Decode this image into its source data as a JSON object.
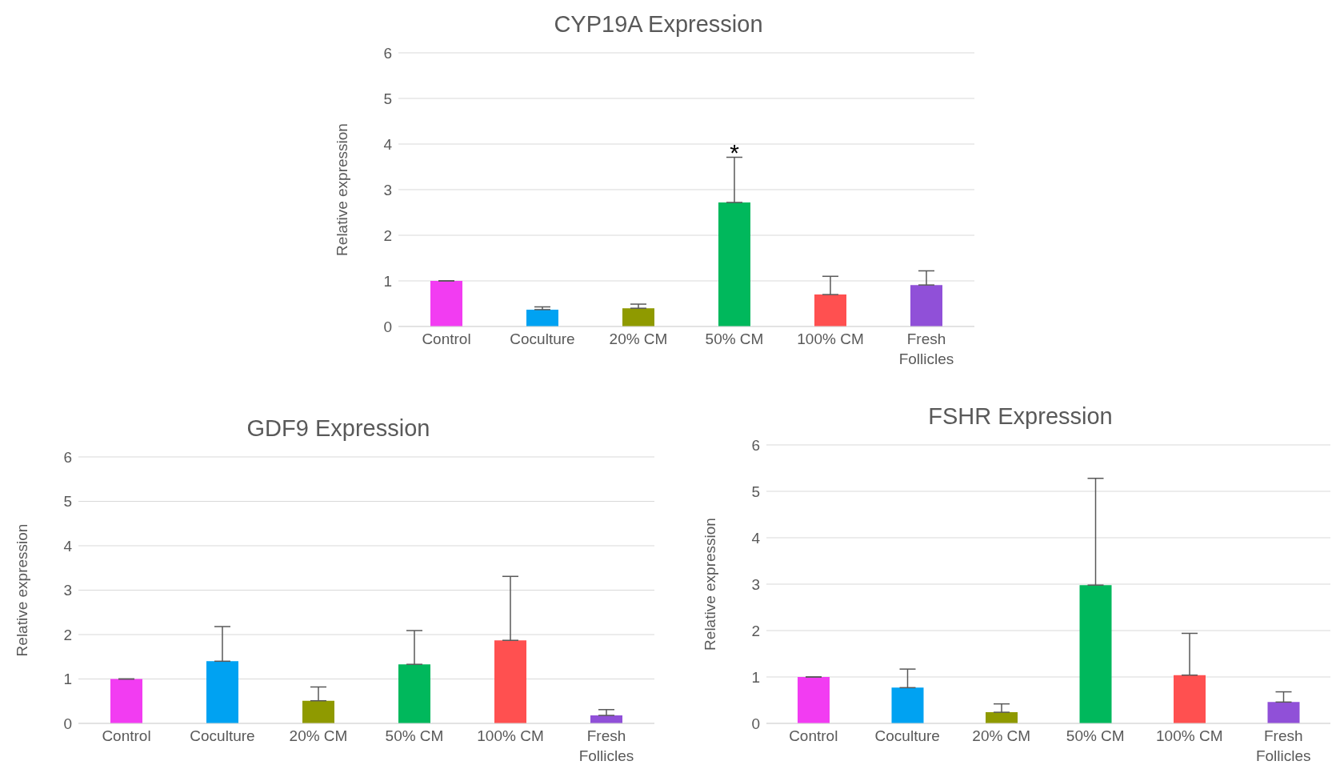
{
  "chart_data": [
    {
      "type": "bar",
      "title": "CYP19A Expression",
      "ylabel": "Relative expression",
      "categories": [
        "Control",
        "Coculture",
        "20% CM",
        "50% CM",
        "100% CM",
        "Fresh Follicles"
      ],
      "values": [
        1.0,
        0.37,
        0.4,
        2.72,
        0.7,
        0.91
      ],
      "colors": [
        "#f23cf2",
        "#00a2f2",
        "#8f9a00",
        "#00b85c",
        "#ff5050",
        "#9050d8"
      ],
      "errors": [
        [
          1.0,
          1.0
        ],
        [
          0.37,
          0.43
        ],
        [
          0.4,
          0.49
        ],
        [
          2.72,
          3.71
        ],
        [
          0.7,
          1.1
        ],
        [
          0.91,
          1.22
        ]
      ],
      "ylim": [
        0,
        6
      ],
      "yticks": [
        0,
        1,
        2,
        3,
        4,
        5,
        6
      ],
      "grid": "y",
      "legend": false,
      "annotations": [
        {
          "text": "*",
          "x": "50% CM",
          "y": 3.71
        }
      ]
    },
    {
      "type": "bar",
      "title": "GDF9 Expression",
      "ylabel": "Relative expression",
      "categories": [
        "Control",
        "Coculture",
        "20% CM",
        "50% CM",
        "100% CM",
        "Fresh Follicles"
      ],
      "values": [
        1.0,
        1.4,
        0.51,
        1.33,
        1.87,
        0.18
      ],
      "colors": [
        "#f23cf2",
        "#00a2f2",
        "#8f9a00",
        "#00b85c",
        "#ff5050",
        "#9050d8"
      ],
      "errors": [
        [
          1.0,
          1.0
        ],
        [
          1.4,
          2.18
        ],
        [
          0.51,
          0.82
        ],
        [
          1.33,
          2.09
        ],
        [
          1.87,
          3.31
        ],
        [
          0.18,
          0.31
        ]
      ],
      "ylim": [
        0,
        6
      ],
      "yticks": [
        0,
        1,
        2,
        3,
        4,
        5,
        6
      ],
      "grid": "y",
      "legend": false
    },
    {
      "type": "bar",
      "title": "FSHR Expression",
      "ylabel": "Relative expression",
      "categories": [
        "Control",
        "Coculture",
        "20% CM",
        "50% CM",
        "100% CM",
        "Fresh Follicles"
      ],
      "values": [
        1.0,
        0.77,
        0.24,
        2.98,
        1.04,
        0.46
      ],
      "colors": [
        "#f23cf2",
        "#00a2f2",
        "#8f9a00",
        "#00b85c",
        "#ff5050",
        "#9050d8"
      ],
      "errors": [
        [
          1.0,
          1.0
        ],
        [
          0.77,
          1.17
        ],
        [
          0.24,
          0.42
        ],
        [
          2.98,
          5.28
        ],
        [
          1.04,
          1.94
        ],
        [
          0.46,
          0.68
        ]
      ],
      "ylim": [
        0,
        6
      ],
      "yticks": [
        0,
        1,
        2,
        3,
        4,
        5,
        6
      ],
      "grid": "y",
      "legend": false
    }
  ]
}
